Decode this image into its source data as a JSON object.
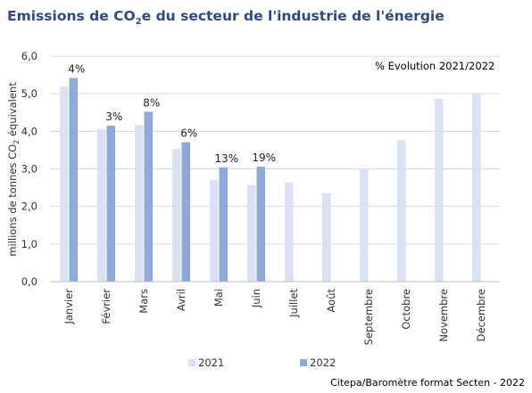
{
  "chart_data": {
    "type": "bar",
    "title_parts": [
      "Emissions de CO",
      "2",
      "e du secteur de l'industrie de l'énergie"
    ],
    "ylabel_parts": [
      "millions de tonnes CO",
      "2",
      " équivalent"
    ],
    "xlabel": "",
    "annotation": "% Evolution 2021/2022",
    "categories": [
      "Janvier",
      "Février",
      "Mars",
      "Avril",
      "Mai",
      "Juin",
      "Juillet",
      "Août",
      "Septembre",
      "Octobre",
      "Novembre",
      "Décembre"
    ],
    "ylim": [
      0,
      6
    ],
    "yticks": [
      "0,0",
      "1,0",
      "2,0",
      "3,0",
      "4,0",
      "5,0",
      "6,0"
    ],
    "grid": true,
    "legend_position": "bottom",
    "series": [
      {
        "name": "2021",
        "color": "#d9e1f2",
        "values": [
          5.2,
          4.05,
          4.17,
          3.53,
          2.7,
          2.57,
          2.64,
          2.35,
          3.0,
          3.76,
          4.87,
          5.0
        ]
      },
      {
        "name": "2022",
        "color": "#8ea9db",
        "values": [
          5.42,
          4.15,
          4.52,
          3.71,
          3.04,
          3.06,
          null,
          null,
          null,
          null,
          null,
          null
        ]
      }
    ],
    "change_labels": [
      "4%",
      "3%",
      "8%",
      "6%",
      "13%",
      "19%"
    ]
  },
  "source": "Citepa/Baromètre format Secten - 2022"
}
